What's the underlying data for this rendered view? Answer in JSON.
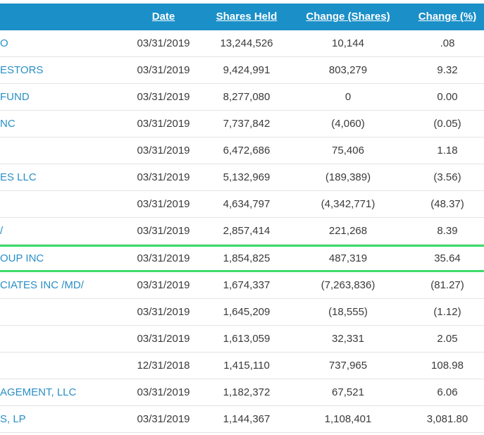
{
  "header": {
    "date": "Date",
    "shares_held": "Shares Held",
    "change_shares": "Change (Shares)",
    "change_pct": "Change (%)"
  },
  "rows": [
    {
      "name": "O",
      "date": "03/31/2019",
      "shares": "13,244,526",
      "change": "10,144",
      "pct": ".08"
    },
    {
      "name": "ESTORS",
      "date": "03/31/2019",
      "shares": "9,424,991",
      "change": "803,279",
      "pct": "9.32"
    },
    {
      "name": " FUND",
      "date": "03/31/2019",
      "shares": "8,277,080",
      "change": "0",
      "pct": "0.00"
    },
    {
      "name": "NC",
      "date": "03/31/2019",
      "shares": "7,737,842",
      "change": "(4,060)",
      "pct": "(0.05)"
    },
    {
      "name": "",
      "date": "03/31/2019",
      "shares": "6,472,686",
      "change": "75,406",
      "pct": "1.18"
    },
    {
      "name": "ES LLC",
      "date": "03/31/2019",
      "shares": "5,132,969",
      "change": "(189,389)",
      "pct": "(3.56)"
    },
    {
      "name": "",
      "date": "03/31/2019",
      "shares": "4,634,797",
      "change": "(4,342,771)",
      "pct": "(48.37)"
    },
    {
      "name": "/",
      "date": "03/31/2019",
      "shares": "2,857,414",
      "change": "221,268",
      "pct": "8.39"
    },
    {
      "name": "OUP INC",
      "date": "03/31/2019",
      "shares": "1,854,825",
      "change": "487,319",
      "pct": "35.64"
    },
    {
      "name": "CIATES INC /MD/",
      "date": "03/31/2019",
      "shares": "1,674,337",
      "change": "(7,263,836)",
      "pct": "(81.27)"
    },
    {
      "name": "",
      "date": "03/31/2019",
      "shares": "1,645,209",
      "change": "(18,555)",
      "pct": "(1.12)"
    },
    {
      "name": "",
      "date": "03/31/2019",
      "shares": "1,613,059",
      "change": "32,331",
      "pct": "2.05"
    },
    {
      "name": "",
      "date": "12/31/2018",
      "shares": "1,415,110",
      "change": "737,965",
      "pct": "108.98"
    },
    {
      "name": "AGEMENT, LLC",
      "date": "03/31/2019",
      "shares": "1,182,372",
      "change": "67,521",
      "pct": "6.06"
    },
    {
      "name": "S, LP",
      "date": "03/31/2019",
      "shares": "1,144,367",
      "change": "1,108,401",
      "pct": "3,081.80"
    }
  ],
  "highlighted_row_index": 8,
  "colors": {
    "header_bg": "#1a8fc8",
    "link": "#2a8fc5",
    "highlight_border": "#3ddc6b"
  }
}
